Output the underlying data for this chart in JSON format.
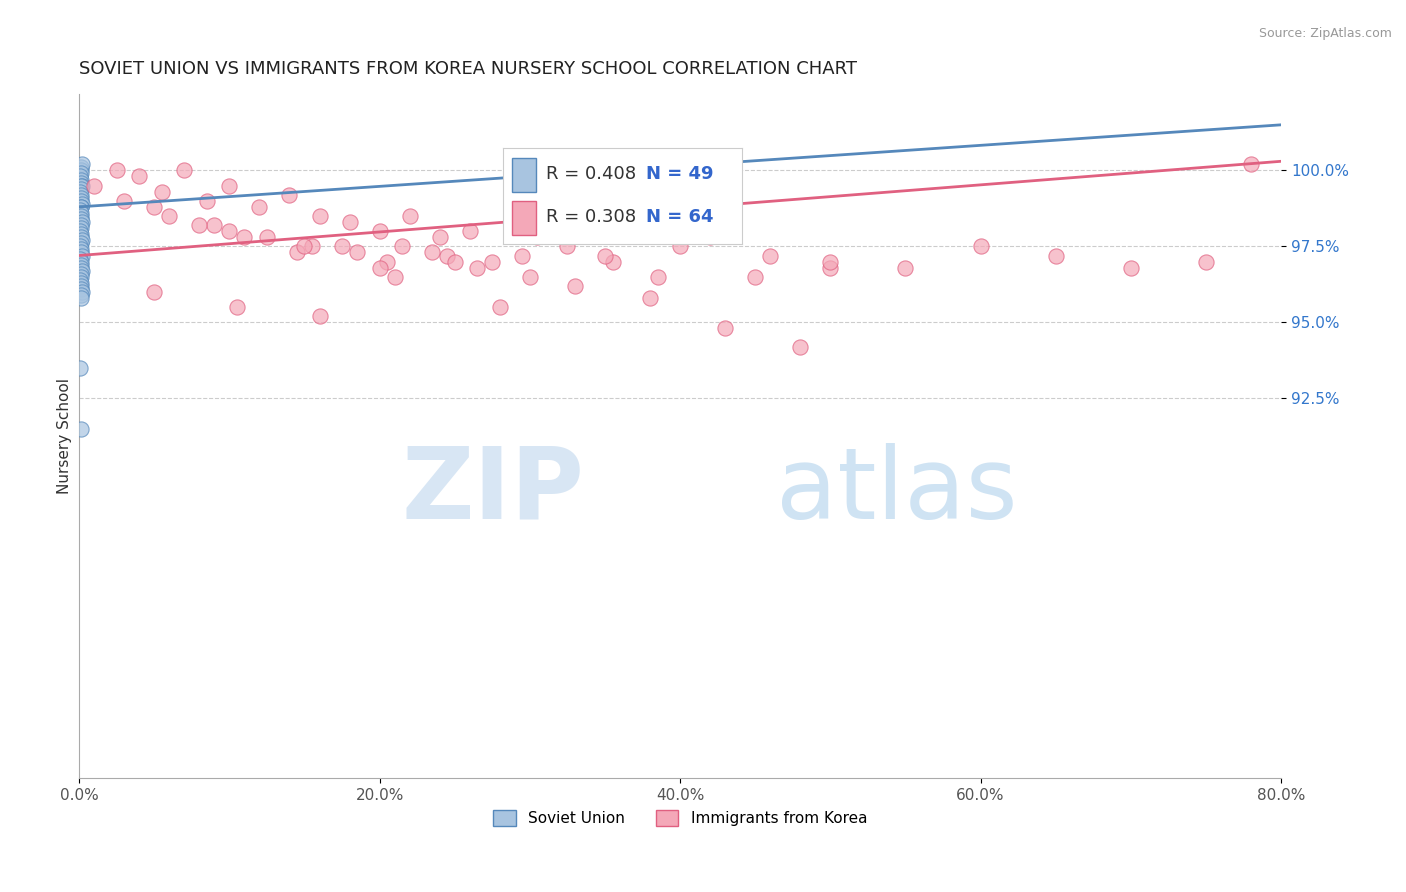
{
  "title": "SOVIET UNION VS IMMIGRANTS FROM KOREA NURSERY SCHOOL CORRELATION CHART",
  "source": "Source: ZipAtlas.com",
  "ylabel": "Nursery School",
  "xlim": [
    0.0,
    80.0
  ],
  "ylim": [
    80.0,
    102.5
  ],
  "yticks": [
    92.5,
    95.0,
    97.5,
    100.0
  ],
  "ytick_labels": [
    "92.5%",
    "95.0%",
    "97.5%",
    "100.0%"
  ],
  "xticks": [
    0.0,
    20.0,
    40.0,
    60.0,
    80.0
  ],
  "xtick_labels": [
    "0.0%",
    "20.0%",
    "40.0%",
    "60.0%",
    "80.0%"
  ],
  "blue_color": "#A8C4E0",
  "pink_color": "#F4A8B8",
  "blue_edge": "#5588BB",
  "pink_edge": "#E06080",
  "legend_r_blue": "R = 0.408",
  "legend_n_blue": "N = 49",
  "legend_r_pink": "R = 0.308",
  "legend_n_pink": "N = 64",
  "legend_label_blue": "Soviet Union",
  "legend_label_pink": "Immigrants from Korea",
  "watermark_zip": "ZIP",
  "watermark_atlas": "atlas",
  "blue_x": [
    0.1,
    0.15,
    0.2,
    0.1,
    0.05,
    0.15,
    0.1,
    0.2,
    0.15,
    0.1,
    0.05,
    0.1,
    0.15,
    0.1,
    0.2,
    0.15,
    0.1,
    0.05,
    0.1,
    0.15,
    0.1,
    0.2,
    0.15,
    0.1,
    0.05,
    0.1,
    0.15,
    0.2,
    0.1,
    0.05,
    0.15,
    0.1,
    0.2,
    0.05,
    0.1,
    0.15,
    0.1,
    0.2,
    0.15,
    0.1,
    0.05,
    0.1,
    0.15,
    0.1,
    0.2,
    0.15,
    0.1,
    0.05,
    0.1
  ],
  "blue_y": [
    100.1,
    100.0,
    100.2,
    99.9,
    99.8,
    99.7,
    99.6,
    99.5,
    99.5,
    99.4,
    99.3,
    99.2,
    99.1,
    99.0,
    98.9,
    98.8,
    98.8,
    98.7,
    98.6,
    98.5,
    98.4,
    98.3,
    98.2,
    98.1,
    98.0,
    97.9,
    97.8,
    97.7,
    97.6,
    97.5,
    97.4,
    97.3,
    97.2,
    97.1,
    97.0,
    96.9,
    96.8,
    96.7,
    96.6,
    96.5,
    96.4,
    96.3,
    96.2,
    96.1,
    96.0,
    95.9,
    95.8,
    93.5,
    91.5
  ],
  "pink_x": [
    1.0,
    2.5,
    4.0,
    5.5,
    7.0,
    8.5,
    10.0,
    12.0,
    14.0,
    16.0,
    18.0,
    20.0,
    22.0,
    24.0,
    26.0,
    3.0,
    6.0,
    9.0,
    12.5,
    15.5,
    18.5,
    21.5,
    24.5,
    27.5,
    30.5,
    5.0,
    8.0,
    11.0,
    14.5,
    17.5,
    20.5,
    23.5,
    26.5,
    29.5,
    32.5,
    35.5,
    38.5,
    42.0,
    46.0,
    50.0,
    10.0,
    15.0,
    20.0,
    25.0,
    30.0,
    35.0,
    40.0,
    45.0,
    50.0,
    55.0,
    60.0,
    65.0,
    70.0,
    75.0,
    78.0,
    5.0,
    10.5,
    16.0,
    21.0,
    28.0,
    33.0,
    38.0,
    43.0,
    48.0
  ],
  "pink_y": [
    99.5,
    100.0,
    99.8,
    99.3,
    100.0,
    99.0,
    99.5,
    98.8,
    99.2,
    98.5,
    98.3,
    98.0,
    98.5,
    97.8,
    98.0,
    99.0,
    98.5,
    98.2,
    97.8,
    97.5,
    97.3,
    97.5,
    97.2,
    97.0,
    97.8,
    98.8,
    98.2,
    97.8,
    97.3,
    97.5,
    97.0,
    97.3,
    96.8,
    97.2,
    97.5,
    97.0,
    96.5,
    97.8,
    97.2,
    96.8,
    98.0,
    97.5,
    96.8,
    97.0,
    96.5,
    97.2,
    97.5,
    96.5,
    97.0,
    96.8,
    97.5,
    97.2,
    96.8,
    97.0,
    100.2,
    96.0,
    95.5,
    95.2,
    96.5,
    95.5,
    96.2,
    95.8,
    94.8,
    94.2
  ],
  "blue_trend_x": [
    0.0,
    80.0
  ],
  "blue_trend_y": [
    98.8,
    101.5
  ],
  "pink_trend_x": [
    0.0,
    80.0
  ],
  "pink_trend_y": [
    97.2,
    100.3
  ],
  "grid_color": "#CCCCCC",
  "background_color": "#FFFFFF",
  "title_fontsize": 13,
  "axis_label_fontsize": 11,
  "tick_fontsize": 11,
  "marker_size": 120
}
